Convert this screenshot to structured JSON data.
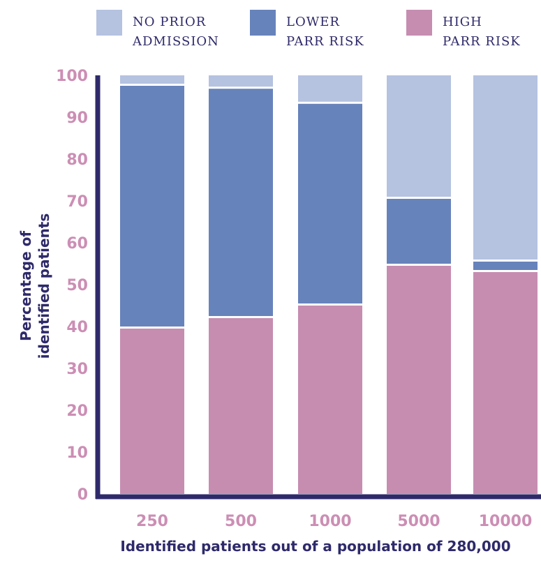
{
  "chart_data": {
    "type": "bar",
    "stacked": true,
    "categories": [
      "250",
      "500",
      "1000",
      "5000",
      "10000"
    ],
    "series": [
      {
        "name": "HIGH PARR RISK",
        "color": "#c68db1",
        "values": [
          40,
          42.5,
          45.5,
          55,
          53.5
        ]
      },
      {
        "name": "LOWER PARR RISK",
        "color": "#6783bb",
        "values": [
          58,
          54.8,
          48.2,
          16,
          2.5
        ]
      },
      {
        "name": "NO PRIOR ADMISSION",
        "color": "#b5c2e0",
        "values": [
          2,
          2.7,
          6.3,
          29,
          44
        ]
      }
    ],
    "legend": [
      {
        "line1": "NO PRIOR",
        "line2": "ADMISSION",
        "color": "#b5c2e0"
      },
      {
        "line1": "LOWER",
        "line2": "PARR RISK",
        "color": "#6783bb"
      },
      {
        "line1": "HIGH",
        "line2": "PARR RISK",
        "color": "#c68db1"
      }
    ],
    "legend_position": "top",
    "ylabel_line1": "Percentage of",
    "ylabel_line2": "identified patients",
    "xlabel": "Identified patients out of a population of 280,000",
    "ylim": [
      0,
      100
    ],
    "yticks": [
      0,
      10,
      20,
      30,
      40,
      50,
      60,
      70,
      80,
      90,
      100
    ],
    "grid": false,
    "axis_color": "#2e2a6a",
    "tick_color": "#cc8eb4"
  }
}
